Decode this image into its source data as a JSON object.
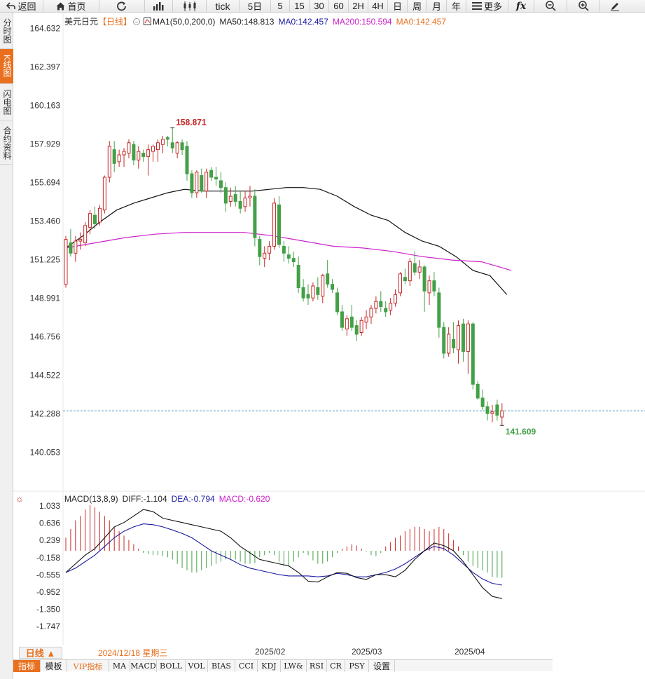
{
  "toolbar": {
    "back": "返回",
    "home": "首页",
    "tick": "tick",
    "periods": [
      "5日",
      "5",
      "15",
      "30",
      "60",
      "2H",
      "4H",
      "日",
      "周",
      "月",
      "年"
    ],
    "more": "更多"
  },
  "side_tabs": [
    {
      "label": "分时图",
      "active": false
    },
    {
      "label": "K线图",
      "active": true
    },
    {
      "label": "闪电图",
      "active": false
    },
    {
      "label": "合约资料",
      "active": false
    }
  ],
  "main_legend": {
    "symbol": "美元日元",
    "period": "【日线】",
    "ma_name": "MA1(50,0,200,0)",
    "ma50": "MA50:148.813",
    "ma0_a": "MA0:142.457",
    "ma200": "MA200:150.594",
    "ma0_b": "MA0:142.457"
  },
  "macd_legend": {
    "name": "MACD(13,8,9)",
    "diff": "DIFF:-1.104",
    "dea": "DEA:-0.794",
    "macd": "MACD:-0.620"
  },
  "colors": {
    "up": "#c62828",
    "down": "#43a047",
    "ma50": "#111111",
    "ma200": "#cc22cc",
    "dea": "#1a1aa0",
    "accent": "#e8701f"
  },
  "chart_data": {
    "type": "candlestick",
    "price_axis": {
      "ticks": [
        164.632,
        162.397,
        160.163,
        157.929,
        155.694,
        153.46,
        151.225,
        148.991,
        146.756,
        144.522,
        142.288,
        140.053
      ]
    },
    "macd_axis": {
      "ticks": [
        1.033,
        0.636,
        0.239,
        -0.158,
        -0.555,
        -0.952,
        -1.35,
        -1.747
      ]
    },
    "annotations": {
      "high": "158.871",
      "low": "141.609",
      "last_price": 142.457
    },
    "x_labels": [
      "2024/12/18 星期三",
      "2025/02",
      "2025/03",
      "2025/04"
    ],
    "candles": [
      [
        149.8,
        152.6,
        149.6,
        152.4
      ],
      [
        152.2,
        153.0,
        151.4,
        151.6
      ],
      [
        151.6,
        152.6,
        151.1,
        152.3
      ],
      [
        152.3,
        152.8,
        151.8,
        152.4
      ],
      [
        152.2,
        153.4,
        152.0,
        153.2
      ],
      [
        153.1,
        154.1,
        152.7,
        153.9
      ],
      [
        153.8,
        154.3,
        153.0,
        153.3
      ],
      [
        153.4,
        154.4,
        153.2,
        154.2
      ],
      [
        154.1,
        156.1,
        153.9,
        156.0
      ],
      [
        156.0,
        158.1,
        155.7,
        157.8
      ],
      [
        157.6,
        158.1,
        156.3,
        156.8
      ],
      [
        156.9,
        157.6,
        156.6,
        157.3
      ],
      [
        157.3,
        157.7,
        156.6,
        157.5
      ],
      [
        157.4,
        158.2,
        157.1,
        158.0
      ],
      [
        157.9,
        158.1,
        156.7,
        157.0
      ],
      [
        157.0,
        157.8,
        156.5,
        157.5
      ],
      [
        157.4,
        157.6,
        156.9,
        157.2
      ],
      [
        157.2,
        157.9,
        156.1,
        157.6
      ],
      [
        157.5,
        157.9,
        156.9,
        157.8
      ],
      [
        157.6,
        158.2,
        156.9,
        158.0
      ],
      [
        157.9,
        158.4,
        157.4,
        158.2
      ],
      [
        158.3,
        158.4,
        157.8,
        158.2
      ],
      [
        158.0,
        158.87,
        157.4,
        157.7
      ],
      [
        157.4,
        158.1,
        157.1,
        158.0
      ],
      [
        158.0,
        158.2,
        157.3,
        157.6
      ],
      [
        157.8,
        158.1,
        155.8,
        156.2
      ],
      [
        156.2,
        156.4,
        154.8,
        155.1
      ],
      [
        155.1,
        156.4,
        154.8,
        156.3
      ],
      [
        156.1,
        156.5,
        155.1,
        155.2
      ],
      [
        155.2,
        156.5,
        154.8,
        156.3
      ],
      [
        156.4,
        156.6,
        155.8,
        156.0
      ],
      [
        156.0,
        156.6,
        155.5,
        155.9
      ],
      [
        155.8,
        156.3,
        155.1,
        155.4
      ],
      [
        155.4,
        155.7,
        154.0,
        154.5
      ],
      [
        154.6,
        155.4,
        154.3,
        154.9
      ],
      [
        155.0,
        155.5,
        154.3,
        154.6
      ],
      [
        154.6,
        155.2,
        153.9,
        154.2
      ],
      [
        154.3,
        155.2,
        154.0,
        154.8
      ],
      [
        154.8,
        155.5,
        154.3,
        154.9
      ],
      [
        154.9,
        155.3,
        152.0,
        152.5
      ],
      [
        152.4,
        152.6,
        150.9,
        151.4
      ],
      [
        151.3,
        152.0,
        150.8,
        151.6
      ],
      [
        151.6,
        152.3,
        151.2,
        152.0
      ],
      [
        152.0,
        154.8,
        151.8,
        154.5
      ],
      [
        154.4,
        154.9,
        151.9,
        152.1
      ],
      [
        152.0,
        152.3,
        151.1,
        151.6
      ],
      [
        151.5,
        152.0,
        151.0,
        151.3
      ],
      [
        151.3,
        151.7,
        150.8,
        151.1
      ],
      [
        150.9,
        151.4,
        149.3,
        149.6
      ],
      [
        149.6,
        150.1,
        148.8,
        149.0
      ],
      [
        149.2,
        149.8,
        148.6,
        149.0
      ],
      [
        149.0,
        149.9,
        148.8,
        149.7
      ],
      [
        149.6,
        150.2,
        148.9,
        149.2
      ],
      [
        149.1,
        150.4,
        148.7,
        150.3
      ],
      [
        150.4,
        151.2,
        149.6,
        149.8
      ],
      [
        149.8,
        150.1,
        149.3,
        149.5
      ],
      [
        149.3,
        149.6,
        148.0,
        148.2
      ],
      [
        148.2,
        148.6,
        147.1,
        147.3
      ],
      [
        147.2,
        148.0,
        146.8,
        147.8
      ],
      [
        147.9,
        148.6,
        147.1,
        147.3
      ],
      [
        147.4,
        147.7,
        146.5,
        146.9
      ],
      [
        147.0,
        147.9,
        146.8,
        147.7
      ],
      [
        147.6,
        148.3,
        147.2,
        147.9
      ],
      [
        147.9,
        148.6,
        147.5,
        148.4
      ],
      [
        148.4,
        149.1,
        148.1,
        148.8
      ],
      [
        148.8,
        149.4,
        148.2,
        148.5
      ],
      [
        148.4,
        148.8,
        147.9,
        148.2
      ],
      [
        148.3,
        149.0,
        148.0,
        148.7
      ],
      [
        148.7,
        149.5,
        148.5,
        149.2
      ],
      [
        149.3,
        150.5,
        149.1,
        150.4
      ],
      [
        150.2,
        150.7,
        149.8,
        150.0
      ],
      [
        150.0,
        151.3,
        149.7,
        151.1
      ],
      [
        151.0,
        151.7,
        150.3,
        150.5
      ],
      [
        150.5,
        151.2,
        150.1,
        150.8
      ],
      [
        150.8,
        150.9,
        148.2,
        149.4
      ],
      [
        149.3,
        150.3,
        148.6,
        150.0
      ],
      [
        150.0,
        150.5,
        149.1,
        149.4
      ],
      [
        149.3,
        149.6,
        146.7,
        147.3
      ],
      [
        147.3,
        147.6,
        145.5,
        145.8
      ],
      [
        145.8,
        147.3,
        145.6,
        146.9
      ],
      [
        146.6,
        147.6,
        145.8,
        146.1
      ],
      [
        146.0,
        147.7,
        145.2,
        147.4
      ],
      [
        147.5,
        147.8,
        145.3,
        145.9
      ],
      [
        145.9,
        147.7,
        144.6,
        147.5
      ],
      [
        147.5,
        147.6,
        143.7,
        144.0
      ],
      [
        144.0,
        144.2,
        143.1,
        143.2
      ],
      [
        143.2,
        143.7,
        142.5,
        142.7
      ],
      [
        142.7,
        143.0,
        141.9,
        142.3
      ],
      [
        142.3,
        142.8,
        141.8,
        142.4
      ],
      [
        142.8,
        143.1,
        141.9,
        142.2
      ],
      [
        142.1,
        142.9,
        141.6,
        142.46
      ]
    ],
    "ma50": [
      [
        151.4,
        151.9
      ],
      [
        152.2,
        152.6
      ],
      [
        152.9,
        153.4
      ],
      [
        153.9,
        154.1
      ],
      [
        154.3,
        154.5
      ],
      [
        154.6,
        154.8
      ],
      [
        155.0,
        155.1
      ],
      [
        155.2,
        155.3
      ],
      [
        155.3,
        155.2
      ],
      [
        155.3,
        155.2
      ],
      [
        155.3,
        155.2
      ],
      [
        155.3,
        155.2
      ],
      [
        155.5,
        155.3
      ],
      [
        155.7,
        155.4
      ],
      [
        155.7,
        155.4
      ],
      [
        155.6,
        155.3
      ],
      [
        155.5,
        154.9
      ],
      [
        155.3,
        154.3
      ],
      [
        155.0,
        153.8
      ],
      [
        154.6,
        153.5
      ],
      [
        154.0,
        152.8
      ],
      [
        153.5,
        152.3
      ],
      [
        153.1,
        152.0
      ],
      [
        152.4,
        151.4
      ],
      [
        151.8,
        150.6
      ],
      [
        151.2,
        150.3
      ],
      [
        150.7,
        149.2
      ]
    ],
    "ma200": [
      [
        151.9,
        152.3
      ],
      [
        152.2,
        152.8
      ],
      [
        152.5,
        153.4
      ],
      [
        152.7,
        154.0
      ],
      [
        152.8,
        154.6
      ],
      [
        152.8,
        154.8
      ],
      [
        152.8,
        155.0
      ],
      [
        152.6,
        155.2
      ],
      [
        152.3,
        155.3
      ],
      [
        152.0,
        155.3
      ],
      [
        151.9,
        155.3
      ],
      [
        151.7,
        155.2
      ],
      [
        151.4,
        155.5
      ],
      [
        151.2,
        155.7
      ],
      [
        151.1,
        155.7
      ],
      [
        150.6,
        155.5
      ]
    ],
    "macd": {
      "diff": [
        [
          -0.5,
          0
        ],
        [
          -0.3,
          1
        ],
        [
          -0.1,
          2
        ],
        [
          0.05,
          3
        ],
        [
          0.3,
          4
        ],
        [
          0.55,
          5
        ],
        [
          0.65,
          6
        ],
        [
          0.8,
          7
        ],
        [
          0.95,
          8
        ],
        [
          0.9,
          9
        ],
        [
          0.75,
          10
        ],
        [
          0.7,
          11
        ],
        [
          0.65,
          12
        ],
        [
          0.6,
          13
        ],
        [
          0.55,
          14
        ],
        [
          0.5,
          15
        ],
        [
          0.45,
          16
        ],
        [
          0.3,
          17
        ],
        [
          0.1,
          18
        ],
        [
          -0.05,
          19
        ],
        [
          -0.2,
          20
        ],
        [
          -0.25,
          21
        ],
        [
          -0.3,
          22
        ],
        [
          -0.35,
          23
        ],
        [
          -0.5,
          24
        ],
        [
          -0.7,
          25
        ],
        [
          -0.72,
          26
        ],
        [
          -0.6,
          27
        ],
        [
          -0.5,
          28
        ],
        [
          -0.52,
          29
        ],
        [
          -0.62,
          30
        ],
        [
          -0.66,
          31
        ],
        [
          -0.55,
          32
        ],
        [
          -0.55,
          33
        ],
        [
          -0.6,
          34
        ],
        [
          -0.45,
          35
        ],
        [
          -0.2,
          36
        ],
        [
          0.0,
          37
        ],
        [
          0.18,
          38
        ],
        [
          0.12,
          39
        ],
        [
          0.0,
          40
        ],
        [
          -0.25,
          41
        ],
        [
          -0.55,
          42
        ],
        [
          -0.85,
          43
        ],
        [
          -1.05,
          44
        ],
        [
          -1.1,
          45
        ]
      ],
      "dea": [
        [
          -0.5,
          0
        ],
        [
          -0.4,
          1
        ],
        [
          -0.25,
          2
        ],
        [
          -0.1,
          3
        ],
        [
          0.1,
          4
        ],
        [
          0.3,
          5
        ],
        [
          0.45,
          6
        ],
        [
          0.55,
          7
        ],
        [
          0.62,
          8
        ],
        [
          0.6,
          9
        ],
        [
          0.55,
          10
        ],
        [
          0.48,
          11
        ],
        [
          0.4,
          12
        ],
        [
          0.3,
          13
        ],
        [
          0.15,
          14
        ],
        [
          0.0,
          15
        ],
        [
          -0.1,
          16
        ],
        [
          -0.2,
          17
        ],
        [
          -0.32,
          18
        ],
        [
          -0.4,
          19
        ],
        [
          -0.45,
          20
        ],
        [
          -0.5,
          21
        ],
        [
          -0.55,
          22
        ],
        [
          -0.58,
          23
        ],
        [
          -0.58,
          24
        ],
        [
          -0.58,
          25
        ],
        [
          -0.6,
          26
        ],
        [
          -0.58,
          27
        ],
        [
          -0.52,
          28
        ],
        [
          -0.55,
          29
        ],
        [
          -0.6,
          30
        ],
        [
          -0.6,
          31
        ],
        [
          -0.55,
          32
        ],
        [
          -0.5,
          33
        ],
        [
          -0.42,
          34
        ],
        [
          -0.3,
          35
        ],
        [
          -0.15,
          36
        ],
        [
          0.0,
          37
        ],
        [
          0.1,
          38
        ],
        [
          0.05,
          39
        ],
        [
          -0.1,
          40
        ],
        [
          -0.3,
          41
        ],
        [
          -0.5,
          42
        ],
        [
          -0.65,
          43
        ],
        [
          -0.75,
          44
        ],
        [
          -0.79,
          45
        ]
      ],
      "hist": [
        0.3,
        0.5,
        0.7,
        0.8,
        0.95,
        1.05,
        1.0,
        0.9,
        0.8,
        0.7,
        0.55,
        0.45,
        0.35,
        0.25,
        0.15,
        0.05,
        -0.05,
        -0.08,
        -0.1,
        -0.1,
        -0.12,
        -0.15,
        -0.2,
        -0.3,
        -0.4,
        -0.45,
        -0.5,
        -0.5,
        -0.45,
        -0.4,
        -0.35,
        -0.3,
        -0.25,
        -0.2,
        -0.18,
        -0.2,
        -0.25,
        -0.3,
        -0.3,
        -0.28,
        -0.15,
        -0.1,
        -0.05,
        -0.1,
        -0.25,
        -0.35,
        -0.35,
        -0.25,
        -0.15,
        -0.05,
        -0.1,
        -0.22,
        -0.3,
        -0.3,
        -0.25,
        -0.15,
        -0.05,
        0.05,
        0.1,
        0.15,
        0.12,
        0.05,
        -0.02,
        -0.1,
        -0.12,
        -0.05,
        0.1,
        0.2,
        0.3,
        0.35,
        0.45,
        0.5,
        0.55,
        0.55,
        0.5,
        0.45,
        0.5,
        0.55,
        0.5,
        0.4,
        0.25,
        0.1,
        -0.1,
        -0.25,
        -0.35,
        -0.4,
        -0.45,
        -0.5,
        -0.6,
        -0.62,
        -0.62
      ]
    }
  },
  "period_bar": {
    "button": "日线 ▲",
    "dates": [
      "2024/12/18 星期三",
      "2025/02",
      "2025/03",
      "2025/04"
    ]
  },
  "indicator_tabs": [
    "指标",
    "模板",
    "VIP指标",
    "MA",
    "MACD",
    "BOLL",
    "VOL",
    "BIAS",
    "CCI",
    "KDJ",
    "LW&",
    "RSI",
    "CR",
    "PSY",
    "设置"
  ]
}
